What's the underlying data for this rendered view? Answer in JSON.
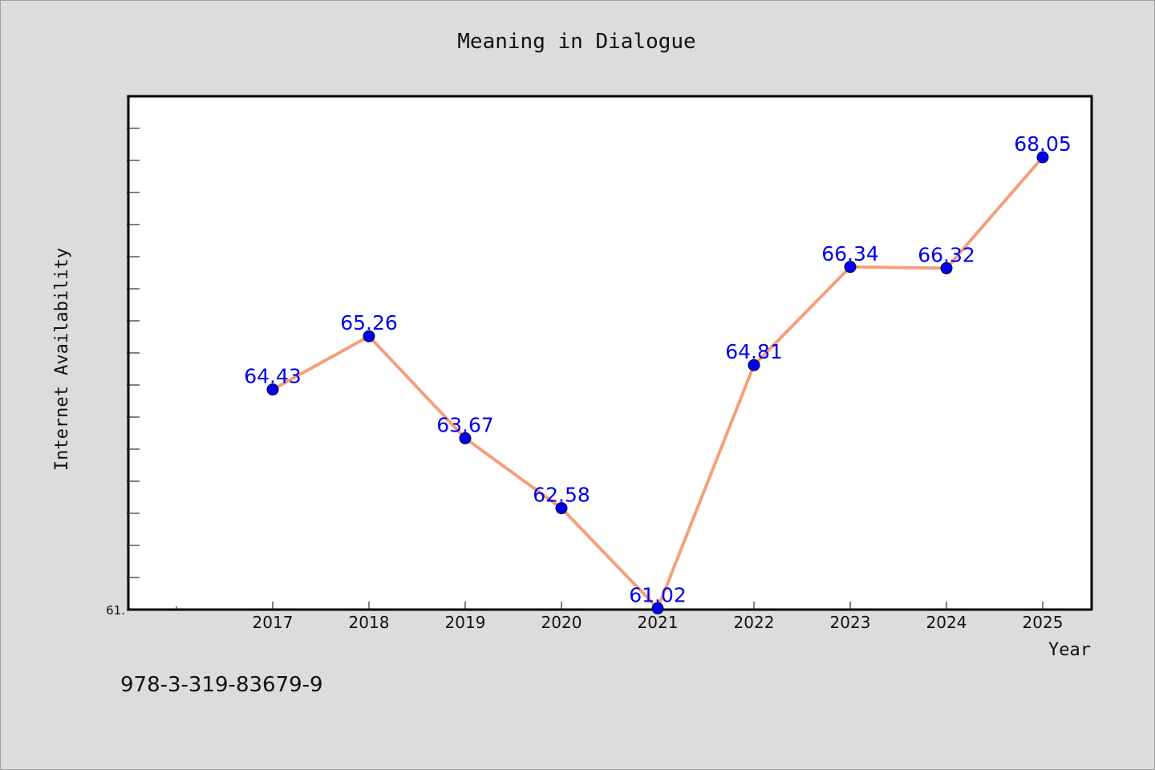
{
  "chart_data": {
    "type": "line",
    "title": "Meaning in Dialogue",
    "xlabel": "Year",
    "ylabel": "Internet Availability",
    "categories": [
      "2017",
      "2018",
      "2019",
      "2020",
      "2021",
      "2022",
      "2023",
      "2024",
      "2025"
    ],
    "series": [
      {
        "values": [
          64.43,
          65.26,
          63.67,
          62.58,
          61.02,
          64.81,
          66.34,
          66.32,
          68.05
        ]
      }
    ],
    "data_labels": [
      "64.43",
      "65.26",
      "63.67",
      "62.58",
      "61.02",
      "64.81",
      "66.34",
      "66.32",
      "68.05"
    ],
    "y_tick_labels": [
      "61."
    ],
    "ylim": [
      61.0,
      69.0
    ],
    "grid": false,
    "line_color": "#f4a07a",
    "marker_color": "#0000ee",
    "label_color": "#0000ee"
  },
  "footnote": "978-3-319-83679-9"
}
